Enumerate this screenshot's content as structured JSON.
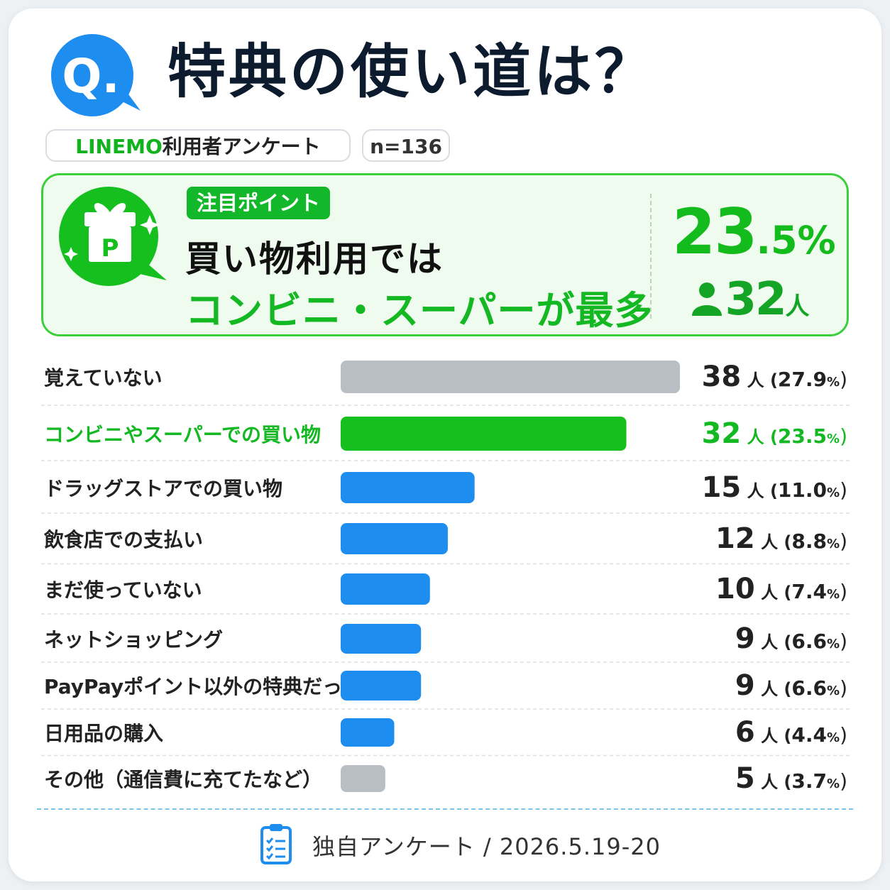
{
  "header": {
    "q_letter": "Q.",
    "title": "特典の使い道は？",
    "survey_brand": "LINEMO",
    "survey_tag": "利用者アンケート",
    "sample_size": "n=136"
  },
  "highlight": {
    "badge": "注目ポイント",
    "line1": "買い物利用では",
    "line2": "コンビニ・スーパーが最多",
    "percent_int": "23",
    "percent_frac": ".5%",
    "count": "32",
    "count_unit": "人",
    "icon_letter": "P"
  },
  "chart_data": {
    "type": "bar",
    "orientation": "horizontal",
    "unit": "人",
    "categories": [
      "覚えていない",
      "コンビニやスーパーでの買い物",
      "ドラッグストアでの買い物",
      "飲食店での支払い",
      "まだ使っていない",
      "ネットショッピング",
      "PayPayポイント以外の特典だった",
      "日用品の購入",
      "その他（通信費に充てたなど）"
    ],
    "values": [
      38,
      32,
      15,
      12,
      10,
      9,
      9,
      6,
      5
    ],
    "percents": [
      "27.9",
      "23.5",
      "11.0",
      "8.8",
      "7.4",
      "6.6",
      "6.6",
      "4.4",
      "3.7"
    ],
    "percent_unit": "%",
    "xlim": [
      0,
      38
    ],
    "colors": {
      "highlight": "#14bf1e",
      "default": "#1e8df0",
      "neutral": "#b9bec5"
    },
    "bar_colors": [
      "neutral",
      "highlight",
      "default",
      "default",
      "default",
      "default",
      "default",
      "default",
      "neutral"
    ]
  },
  "footer": {
    "source": "独自アンケート / 2026.5.19-20"
  },
  "colors": {
    "title": "#0d1b2e",
    "green": "#14bf1e",
    "blue": "#1e8df0"
  }
}
